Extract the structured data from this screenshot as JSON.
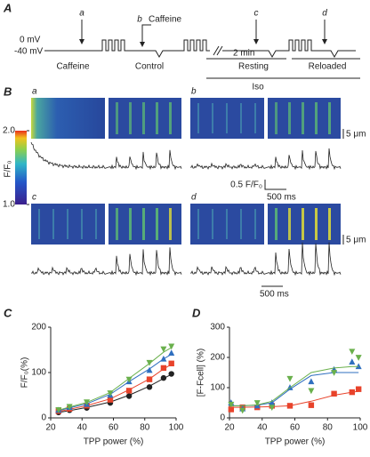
{
  "panel_a": {
    "label": "A",
    "voltage_high": "0 mV",
    "voltage_low": "-40 mV",
    "markers": [
      "a",
      "b",
      "c",
      "d"
    ],
    "caffeine_pulse": "Caffeine",
    "caffeine_label": "Caffeine",
    "control": "Control",
    "gap": "2 min",
    "resting": "Resting",
    "reloaded": "Reloaded",
    "iso": "Iso"
  },
  "panel_b": {
    "label": "B",
    "colorbar_label": "F/F₀",
    "colorbar_lim": [
      1,
      2
    ],
    "colorbar_ticks": [
      {
        "value": 2,
        "label": "2.0"
      },
      {
        "value": 1,
        "label": "1.0"
      }
    ],
    "images": [
      "a",
      "b",
      "c",
      "d"
    ],
    "scale_space": "5 μm",
    "scale_amp": "0.5 F/F₀",
    "scale_time": "500 ms"
  },
  "chart_data": [
    {
      "panel_label": "C",
      "type": "scatter",
      "xlabel": "TPP power (%)",
      "ylabel": "F/F₀(%)",
      "x": [
        25,
        32,
        43,
        58,
        70,
        83,
        92,
        97
      ],
      "xlim": [
        20,
        100
      ],
      "xticks": [
        20,
        40,
        60,
        80,
        100
      ],
      "ylim": [
        0,
        200
      ],
      "yticks": [
        0,
        100,
        200
      ],
      "series": [
        {
          "marker": "circle",
          "color": "#222222",
          "values": [
            12,
            17,
            22,
            33,
            48,
            68,
            88,
            97
          ],
          "fit": [
            12,
            16,
            23,
            35,
            50,
            70,
            87,
            96
          ]
        },
        {
          "marker": "square",
          "color": "#e8432b",
          "values": [
            15,
            20,
            27,
            40,
            60,
            85,
            110,
            120
          ],
          "fit": [
            14,
            19,
            27,
            42,
            62,
            86,
            108,
            118
          ]
        },
        {
          "marker": "triangle-up",
          "color": "#2f6fbf",
          "values": [
            17,
            23,
            30,
            50,
            80,
            105,
            130,
            143
          ],
          "fit": [
            16,
            22,
            31,
            52,
            80,
            108,
            130,
            140
          ]
        },
        {
          "marker": "triangle-down",
          "color": "#6ab04c",
          "values": [
            18,
            25,
            35,
            55,
            85,
            122,
            152,
            158
          ],
          "fit": [
            17,
            24,
            34,
            56,
            87,
            120,
            145,
            155
          ]
        }
      ]
    },
    {
      "panel_label": "D",
      "type": "scatter",
      "xlabel": "TPP power (%)",
      "ylabel": "[F-Fcell] (%)",
      "x": [
        21,
        28,
        37,
        46,
        57,
        70,
        84,
        95,
        99
      ],
      "xlim": [
        20,
        100
      ],
      "xticks": [
        20,
        40,
        60,
        80,
        100
      ],
      "ylim": [
        0,
        300
      ],
      "yticks": [
        0,
        100,
        200,
        300
      ],
      "series": [
        {
          "marker": "square",
          "color": "#e8432b",
          "values": [
            28,
            35,
            35,
            40,
            40,
            42,
            80,
            85,
            95
          ],
          "fit": [
            35,
            35,
            36,
            37,
            40,
            55,
            75,
            85,
            88
          ]
        },
        {
          "marker": "triangle-up",
          "color": "#2f6fbf",
          "values": [
            50,
            30,
            40,
            50,
            100,
            120,
            160,
            185,
            170
          ],
          "fit": [
            40,
            40,
            42,
            50,
            95,
            140,
            150,
            150,
            150
          ]
        },
        {
          "marker": "triangle-down",
          "color": "#6ab04c",
          "values": [
            45,
            25,
            50,
            35,
            130,
            90,
            150,
            220,
            200
          ],
          "fit": [
            40,
            40,
            43,
            55,
            100,
            150,
            165,
            170,
            170
          ]
        }
      ]
    }
  ]
}
